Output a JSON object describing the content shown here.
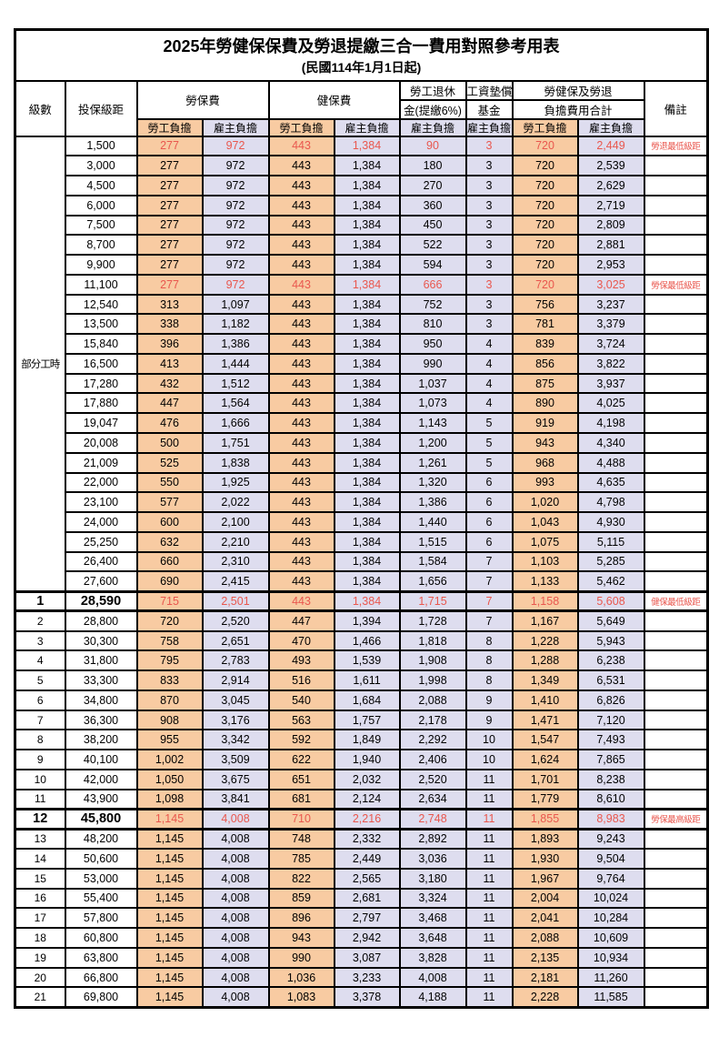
{
  "title": "2025年勞健保保費及勞退提繳三合一費用對照參考用表",
  "subtitle": "(民國114年1月1日起)",
  "header": {
    "level": "級數",
    "bracket": "投保級距",
    "labor_insurance": "勞保費",
    "health_insurance": "健保費",
    "pension_line1": "勞工退休",
    "pension_line2": "金(提繳6%)",
    "wage_fund_line1": "工資墊償",
    "wage_fund_line2": "基金",
    "total_line1": "勞健保及勞退",
    "total_line2": "負擔費用合計",
    "notes": "備註",
    "employee_share": "勞工負擔",
    "employer_share": "雇主負擔"
  },
  "colors": {
    "employee_bg": "#F8CBA2",
    "employer_bg": "#DEDDEF",
    "highlight_text": "#E9574E"
  },
  "part_time": {
    "label": "部分工時",
    "span": 23
  },
  "rows": [
    {
      "level": "",
      "bracket": "1,500",
      "v": [
        "277",
        "972",
        "443",
        "1,384",
        "90",
        "3",
        "720",
        "2,449"
      ],
      "note": "勞退最低級距",
      "red": true,
      "emph": false
    },
    {
      "level": "",
      "bracket": "3,000",
      "v": [
        "277",
        "972",
        "443",
        "1,384",
        "180",
        "3",
        "720",
        "2,539"
      ],
      "note": "",
      "red": false,
      "emph": false
    },
    {
      "level": "",
      "bracket": "4,500",
      "v": [
        "277",
        "972",
        "443",
        "1,384",
        "270",
        "3",
        "720",
        "2,629"
      ],
      "note": "",
      "red": false,
      "emph": false
    },
    {
      "level": "",
      "bracket": "6,000",
      "v": [
        "277",
        "972",
        "443",
        "1,384",
        "360",
        "3",
        "720",
        "2,719"
      ],
      "note": "",
      "red": false,
      "emph": false
    },
    {
      "level": "",
      "bracket": "7,500",
      "v": [
        "277",
        "972",
        "443",
        "1,384",
        "450",
        "3",
        "720",
        "2,809"
      ],
      "note": "",
      "red": false,
      "emph": false
    },
    {
      "level": "",
      "bracket": "8,700",
      "v": [
        "277",
        "972",
        "443",
        "1,384",
        "522",
        "3",
        "720",
        "2,881"
      ],
      "note": "",
      "red": false,
      "emph": false
    },
    {
      "level": "",
      "bracket": "9,900",
      "v": [
        "277",
        "972",
        "443",
        "1,384",
        "594",
        "3",
        "720",
        "2,953"
      ],
      "note": "",
      "red": false,
      "emph": false
    },
    {
      "level": "",
      "bracket": "11,100",
      "v": [
        "277",
        "972",
        "443",
        "1,384",
        "666",
        "3",
        "720",
        "3,025"
      ],
      "note": "勞保最低級距",
      "red": true,
      "emph": false
    },
    {
      "level": "",
      "bracket": "12,540",
      "v": [
        "313",
        "1,097",
        "443",
        "1,384",
        "752",
        "3",
        "756",
        "3,237"
      ],
      "note": "",
      "red": false,
      "emph": false
    },
    {
      "level": "",
      "bracket": "13,500",
      "v": [
        "338",
        "1,182",
        "443",
        "1,384",
        "810",
        "3",
        "781",
        "3,379"
      ],
      "note": "",
      "red": false,
      "emph": false
    },
    {
      "level": "",
      "bracket": "15,840",
      "v": [
        "396",
        "1,386",
        "443",
        "1,384",
        "950",
        "4",
        "839",
        "3,724"
      ],
      "note": "",
      "red": false,
      "emph": false
    },
    {
      "level": "",
      "bracket": "16,500",
      "v": [
        "413",
        "1,444",
        "443",
        "1,384",
        "990",
        "4",
        "856",
        "3,822"
      ],
      "note": "",
      "red": false,
      "emph": false
    },
    {
      "level": "",
      "bracket": "17,280",
      "v": [
        "432",
        "1,512",
        "443",
        "1,384",
        "1,037",
        "4",
        "875",
        "3,937"
      ],
      "note": "",
      "red": false,
      "emph": false
    },
    {
      "level": "",
      "bracket": "17,880",
      "v": [
        "447",
        "1,564",
        "443",
        "1,384",
        "1,073",
        "4",
        "890",
        "4,025"
      ],
      "note": "",
      "red": false,
      "emph": false
    },
    {
      "level": "",
      "bracket": "19,047",
      "v": [
        "476",
        "1,666",
        "443",
        "1,384",
        "1,143",
        "5",
        "919",
        "4,198"
      ],
      "note": "",
      "red": false,
      "emph": false
    },
    {
      "level": "",
      "bracket": "20,008",
      "v": [
        "500",
        "1,751",
        "443",
        "1,384",
        "1,200",
        "5",
        "943",
        "4,340"
      ],
      "note": "",
      "red": false,
      "emph": false
    },
    {
      "level": "",
      "bracket": "21,009",
      "v": [
        "525",
        "1,838",
        "443",
        "1,384",
        "1,261",
        "5",
        "968",
        "4,488"
      ],
      "note": "",
      "red": false,
      "emph": false
    },
    {
      "level": "",
      "bracket": "22,000",
      "v": [
        "550",
        "1,925",
        "443",
        "1,384",
        "1,320",
        "6",
        "993",
        "4,635"
      ],
      "note": "",
      "red": false,
      "emph": false
    },
    {
      "level": "",
      "bracket": "23,100",
      "v": [
        "577",
        "2,022",
        "443",
        "1,384",
        "1,386",
        "6",
        "1,020",
        "4,798"
      ],
      "note": "",
      "red": false,
      "emph": false
    },
    {
      "level": "",
      "bracket": "24,000",
      "v": [
        "600",
        "2,100",
        "443",
        "1,384",
        "1,440",
        "6",
        "1,043",
        "4,930"
      ],
      "note": "",
      "red": false,
      "emph": false
    },
    {
      "level": "",
      "bracket": "25,250",
      "v": [
        "632",
        "2,210",
        "443",
        "1,384",
        "1,515",
        "6",
        "1,075",
        "5,115"
      ],
      "note": "",
      "red": false,
      "emph": false
    },
    {
      "level": "",
      "bracket": "26,400",
      "v": [
        "660",
        "2,310",
        "443",
        "1,384",
        "1,584",
        "7",
        "1,103",
        "5,285"
      ],
      "note": "",
      "red": false,
      "emph": false
    },
    {
      "level": "",
      "bracket": "27,600",
      "v": [
        "690",
        "2,415",
        "443",
        "1,384",
        "1,656",
        "7",
        "1,133",
        "5,462"
      ],
      "note": "",
      "red": false,
      "emph": false
    },
    {
      "level": "1",
      "bracket": "28,590",
      "v": [
        "715",
        "2,501",
        "443",
        "1,384",
        "1,715",
        "7",
        "1,158",
        "5,608"
      ],
      "note": "健保最低級距",
      "red": true,
      "emph": true
    },
    {
      "level": "2",
      "bracket": "28,800",
      "v": [
        "720",
        "2,520",
        "447",
        "1,394",
        "1,728",
        "7",
        "1,167",
        "5,649"
      ],
      "note": "",
      "red": false,
      "emph": false
    },
    {
      "level": "3",
      "bracket": "30,300",
      "v": [
        "758",
        "2,651",
        "470",
        "1,466",
        "1,818",
        "8",
        "1,228",
        "5,943"
      ],
      "note": "",
      "red": false,
      "emph": false
    },
    {
      "level": "4",
      "bracket": "31,800",
      "v": [
        "795",
        "2,783",
        "493",
        "1,539",
        "1,908",
        "8",
        "1,288",
        "6,238"
      ],
      "note": "",
      "red": false,
      "emph": false
    },
    {
      "level": "5",
      "bracket": "33,300",
      "v": [
        "833",
        "2,914",
        "516",
        "1,611",
        "1,998",
        "8",
        "1,349",
        "6,531"
      ],
      "note": "",
      "red": false,
      "emph": false
    },
    {
      "level": "6",
      "bracket": "34,800",
      "v": [
        "870",
        "3,045",
        "540",
        "1,684",
        "2,088",
        "9",
        "1,410",
        "6,826"
      ],
      "note": "",
      "red": false,
      "emph": false
    },
    {
      "level": "7",
      "bracket": "36,300",
      "v": [
        "908",
        "3,176",
        "563",
        "1,757",
        "2,178",
        "9",
        "1,471",
        "7,120"
      ],
      "note": "",
      "red": false,
      "emph": false
    },
    {
      "level": "8",
      "bracket": "38,200",
      "v": [
        "955",
        "3,342",
        "592",
        "1,849",
        "2,292",
        "10",
        "1,547",
        "7,493"
      ],
      "note": "",
      "red": false,
      "emph": false
    },
    {
      "level": "9",
      "bracket": "40,100",
      "v": [
        "1,002",
        "3,509",
        "622",
        "1,940",
        "2,406",
        "10",
        "1,624",
        "7,865"
      ],
      "note": "",
      "red": false,
      "emph": false
    },
    {
      "level": "10",
      "bracket": "42,000",
      "v": [
        "1,050",
        "3,675",
        "651",
        "2,032",
        "2,520",
        "11",
        "1,701",
        "8,238"
      ],
      "note": "",
      "red": false,
      "emph": false
    },
    {
      "level": "11",
      "bracket": "43,900",
      "v": [
        "1,098",
        "3,841",
        "681",
        "2,124",
        "2,634",
        "11",
        "1,779",
        "8,610"
      ],
      "note": "",
      "red": false,
      "emph": false
    },
    {
      "level": "12",
      "bracket": "45,800",
      "v": [
        "1,145",
        "4,008",
        "710",
        "2,216",
        "2,748",
        "11",
        "1,855",
        "8,983"
      ],
      "note": "勞保最高級距",
      "red": true,
      "emph": true
    },
    {
      "level": "13",
      "bracket": "48,200",
      "v": [
        "1,145",
        "4,008",
        "748",
        "2,332",
        "2,892",
        "11",
        "1,893",
        "9,243"
      ],
      "note": "",
      "red": false,
      "emph": false
    },
    {
      "level": "14",
      "bracket": "50,600",
      "v": [
        "1,145",
        "4,008",
        "785",
        "2,449",
        "3,036",
        "11",
        "1,930",
        "9,504"
      ],
      "note": "",
      "red": false,
      "emph": false
    },
    {
      "level": "15",
      "bracket": "53,000",
      "v": [
        "1,145",
        "4,008",
        "822",
        "2,565",
        "3,180",
        "11",
        "1,967",
        "9,764"
      ],
      "note": "",
      "red": false,
      "emph": false
    },
    {
      "level": "16",
      "bracket": "55,400",
      "v": [
        "1,145",
        "4,008",
        "859",
        "2,681",
        "3,324",
        "11",
        "2,004",
        "10,024"
      ],
      "note": "",
      "red": false,
      "emph": false
    },
    {
      "level": "17",
      "bracket": "57,800",
      "v": [
        "1,145",
        "4,008",
        "896",
        "2,797",
        "3,468",
        "11",
        "2,041",
        "10,284"
      ],
      "note": "",
      "red": false,
      "emph": false
    },
    {
      "level": "18",
      "bracket": "60,800",
      "v": [
        "1,145",
        "4,008",
        "943",
        "2,942",
        "3,648",
        "11",
        "2,088",
        "10,609"
      ],
      "note": "",
      "red": false,
      "emph": false
    },
    {
      "level": "19",
      "bracket": "63,800",
      "v": [
        "1,145",
        "4,008",
        "990",
        "3,087",
        "3,828",
        "11",
        "2,135",
        "10,934"
      ],
      "note": "",
      "red": false,
      "emph": false
    },
    {
      "level": "20",
      "bracket": "66,800",
      "v": [
        "1,145",
        "4,008",
        "1,036",
        "3,233",
        "4,008",
        "11",
        "2,181",
        "11,260"
      ],
      "note": "",
      "red": false,
      "emph": false
    },
    {
      "level": "21",
      "bracket": "69,800",
      "v": [
        "1,145",
        "4,008",
        "1,083",
        "3,378",
        "4,188",
        "11",
        "2,228",
        "11,585"
      ],
      "note": "",
      "red": false,
      "emph": false
    }
  ]
}
